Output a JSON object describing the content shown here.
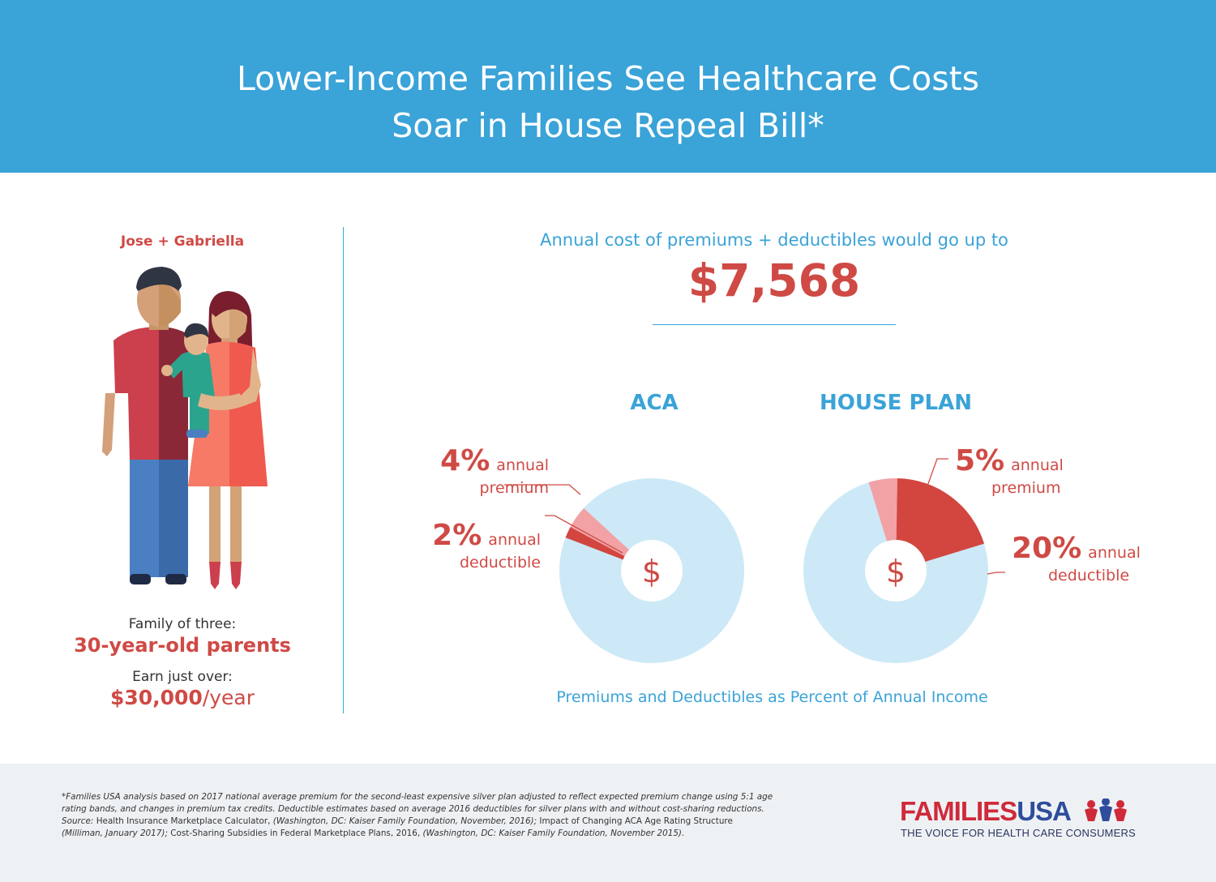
{
  "header": {
    "title_line1": "Lower-Income Families See Healthcare Costs",
    "title_line2": "Soar in House Repeal Bill*"
  },
  "family": {
    "name": "Jose + Gabriella",
    "line1": "Family of three:",
    "line2": "30-year-old parents",
    "line3": "Earn just over:",
    "line4_amount": "$30,000",
    "line4_unit": "/year"
  },
  "summary": {
    "label": "Annual cost of premiums + deductibles would go up to",
    "amount": "$7,568"
  },
  "chart_data": {
    "type": "pie",
    "caption": "Premiums and Deductibles as Percent of Annual Income",
    "center_symbol": "$",
    "charts": [
      {
        "title": "ACA",
        "slices": [
          {
            "label": "annual premium",
            "value_label": "4%",
            "value": 4
          },
          {
            "label": "annual deductible",
            "value_label": "2%",
            "value": 2
          }
        ]
      },
      {
        "title": "HOUSE PLAN",
        "slices": [
          {
            "label": "annual premium",
            "value_label": "5%",
            "value": 5
          },
          {
            "label": "annual deductible",
            "value_label": "20%",
            "value": 20
          }
        ]
      }
    ]
  },
  "colors": {
    "header_blue": "#3aa3d8",
    "accent_red": "#cf4a45",
    "premium_pink": "#f2a2a5",
    "deductible_red": "#d2463f",
    "pie_base": "#cde9f7",
    "footer_bg": "#eef1f4"
  },
  "footer": {
    "note_p1": "*Families USA analysis based on 2017 national average premium for the second-least expensive silver plan adjusted to reflect expected premium change using 5:1 age rating bands, and changes in premium tax credits. Deductible estimates based on average 2016 deductibles for silver plans with and without cost-sharing reductions. Source: ",
    "note_p2": "Health Insurance Marketplace Calculator,",
    "note_p3": " (Washington, DC: Kaiser Family Foundation, November, 2016); ",
    "note_p4": "Impact of Changing ACA Age Rating Structure",
    "note_p5": " (Milliman, January 2017); ",
    "note_p6": "Cost-Sharing Subsidies in Federal Marketplace Plans, 2016,",
    "note_p7": " (Washington, DC: Kaiser Family Foundation, November 2015)."
  },
  "logo": {
    "part1": "FAMILIES",
    "part2": "USA",
    "tagline": "THE VOICE FOR HEALTH CARE CONSUMERS"
  }
}
